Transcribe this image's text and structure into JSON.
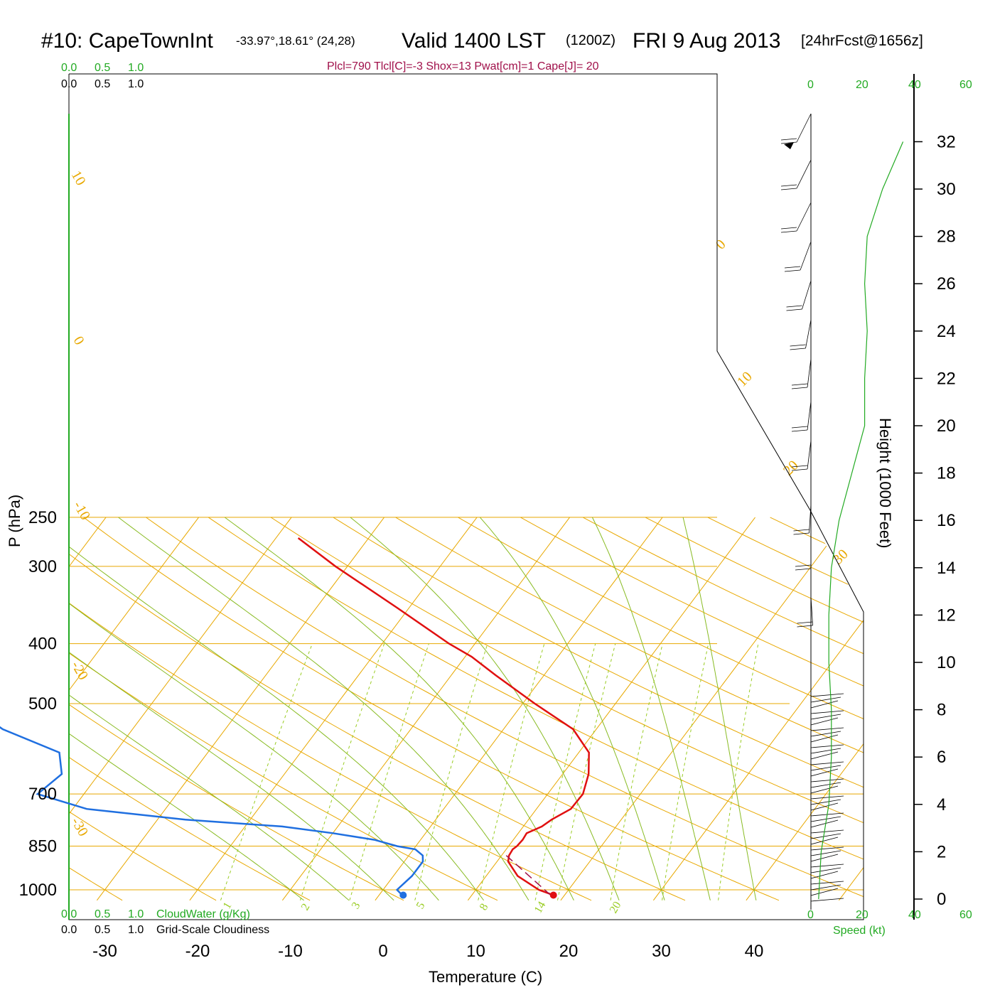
{
  "title": {
    "station": "#10: CapeTownInt",
    "location": "-33.97°,18.61° (24,28)",
    "valid": "Valid 1400 LST",
    "utc": "(1200Z)",
    "date": "FRI 9 Aug 2013",
    "forecast": "[24hrFcst@1656z]"
  },
  "stats": "Plcl=790 Tlcl[C]=-3 Shox=13 Pwat[cm]=1 Cape[J]= 20",
  "scales": {
    "cloudwater_ticks": [
      "0.0",
      "0.5",
      "1.0"
    ],
    "cloudiness_ticks": [
      "0.0",
      "0.5",
      "1.0"
    ],
    "cloudwater_label": "CloudWater (g/Kg)",
    "cloudiness_label": "Grid-Scale Cloudiness",
    "speed_ticks": [
      "0",
      "20",
      "40",
      "60"
    ],
    "speed_label": "Speed (kt)"
  },
  "colors": {
    "temperature": "#e01010",
    "dewpoint": "#1f6fe0",
    "isotherm": "#e8a800",
    "mixing_ratio": "#99cc22",
    "adiabat": "#88bb22",
    "wind_speed": "#22aa22",
    "stats": "#a0104a"
  },
  "chart_data": {
    "type": "line",
    "title": "#10: CapeTownInt  Valid 1400 LST (1200Z) FRI 9 Aug 2013 [24hrFcst@1656z]",
    "xlabel": "Temperature (C)",
    "ylabel": "P (hPa)",
    "y2label": "Height (1000 Feet)",
    "x_ticks": [
      -30,
      -20,
      -10,
      0,
      10,
      20,
      30,
      40
    ],
    "y_ticks": [
      250,
      300,
      400,
      500,
      700,
      850,
      1000
    ],
    "y_scale": "log",
    "y_range": [
      1040,
      250
    ],
    "height_ticks": [
      0,
      2,
      4,
      6,
      8,
      10,
      12,
      14,
      16,
      18,
      20,
      22,
      24,
      26,
      28,
      30,
      32
    ],
    "isotherm_labels": [
      "10",
      "0",
      "-10",
      "-20",
      "-30",
      "0",
      "10",
      "20",
      "30"
    ],
    "mixing_ratio_labels": [
      "1",
      "2",
      "3",
      "5",
      "8",
      "14",
      "20"
    ],
    "series": [
      {
        "name": "Temperature",
        "p": [
          1020,
          1000,
          950,
          900,
          880,
          860,
          850,
          830,
          810,
          790,
          770,
          740,
          700,
          650,
          600,
          550,
          500,
          450,
          420,
          400,
          350,
          300,
          270
        ],
        "t": [
          18.8,
          16.8,
          13.4,
          11.2,
          10.8,
          10.7,
          10.9,
          11.0,
          10.9,
          12.0,
          12.5,
          13.7,
          13.8,
          12.8,
          11.1,
          7.5,
          1.3,
          -5.2,
          -9.3,
          -12.8,
          -21.3,
          -31.3,
          -37.6
        ]
      },
      {
        "name": "Dewpoint",
        "p": [
          1020,
          1000,
          950,
          900,
          880,
          860,
          850,
          830,
          810,
          790,
          770,
          740,
          700,
          650,
          600,
          550,
          500,
          450,
          420,
          400,
          350,
          300,
          270
        ],
        "t": [
          2.5,
          1.5,
          2.0,
          2.0,
          1.5,
          0.2,
          -2.0,
          -5.0,
          -10.0,
          -16.0,
          -27.0,
          -38.5,
          -45.0,
          -44.0,
          -46.0,
          -54.0,
          -60.0,
          -64.0,
          -68.0,
          -71.0,
          -71.0,
          -71.5,
          -77.0
        ]
      }
    ],
    "surface_points": {
      "temperature": 18.8,
      "dewpoint": 2.6
    },
    "parcel": {
      "p": [
        1020,
        880
      ],
      "t": [
        18.5,
        10.5
      ]
    },
    "wind_speed_profile": {
      "height_kft": [
        0,
        2,
        4,
        6,
        8,
        10,
        12,
        14,
        16,
        18,
        20,
        22,
        24,
        26,
        28,
        30,
        32
      ],
      "speed_kt": [
        3,
        4,
        7,
        8,
        8,
        7,
        7,
        8,
        11,
        16,
        21,
        21,
        22,
        21,
        22,
        28,
        36
      ]
    }
  }
}
